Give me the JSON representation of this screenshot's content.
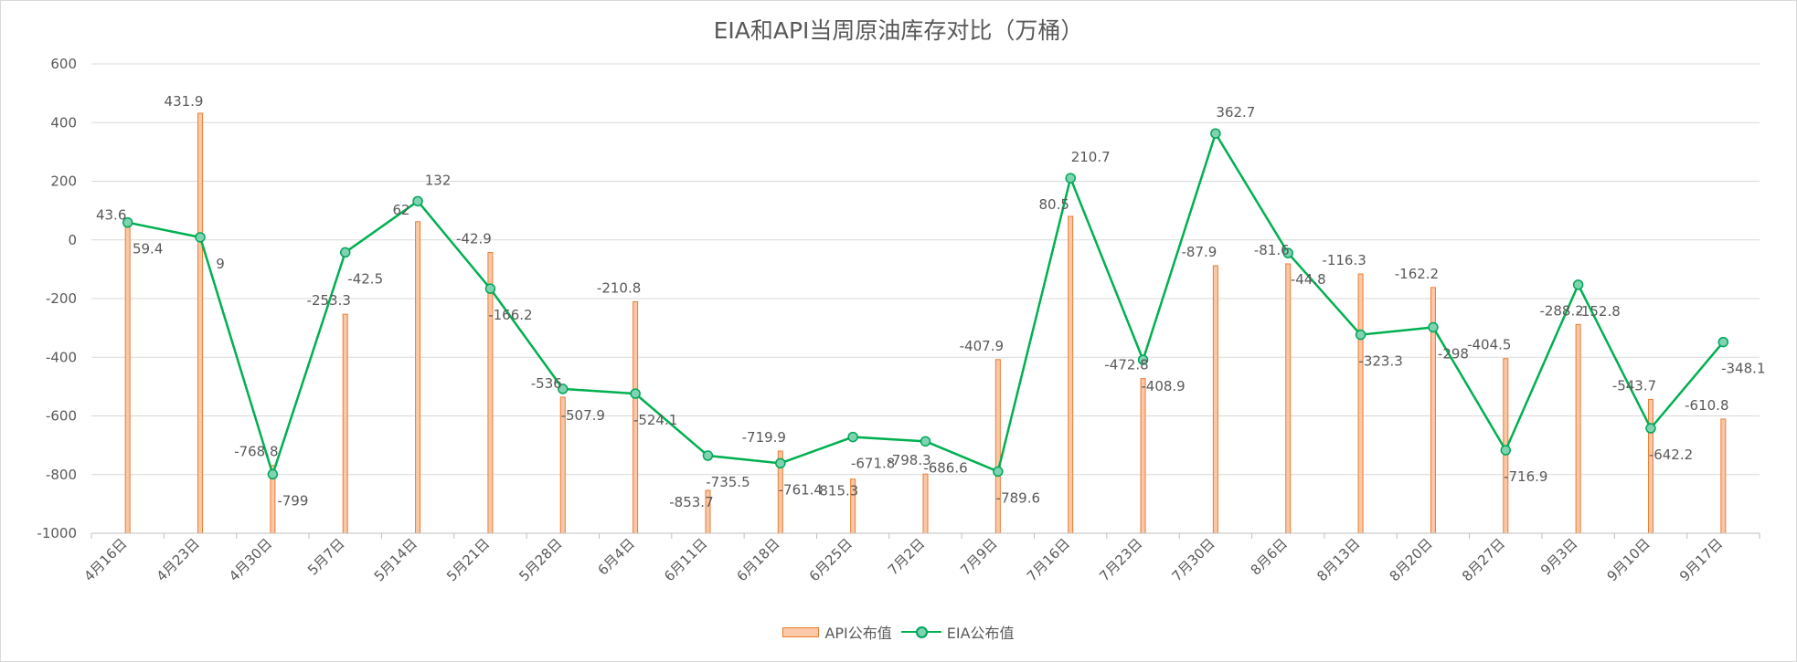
{
  "chart_data": {
    "type": "bar+line",
    "title": "EIA和API当周原油库存对比（万桶）",
    "categories": [
      "4月16日",
      "4月23日",
      "4月30日",
      "5月7日",
      "5月14日",
      "5月21日",
      "5月28日",
      "6月4日",
      "6月11日",
      "6月18日",
      "6月25日",
      "7月2日",
      "7月9日",
      "7月16日",
      "7月23日",
      "7月30日",
      "8月6日",
      "8月13日",
      "8月20日",
      "8月27日",
      "9月3日",
      "9月10日",
      "9月17日"
    ],
    "series": [
      {
        "name": "API公布值",
        "type": "bar",
        "color": "#ed7d31",
        "fill": "#f8c8a8",
        "values": [
          43.6,
          431.9,
          -768.8,
          -253.3,
          62,
          -42.9,
          -536,
          -210.8,
          -853.7,
          -719.9,
          -815.3,
          -798.3,
          -407.9,
          80.5,
          -472.8,
          -87.9,
          -81.6,
          -116.3,
          -162.2,
          -404.5,
          -288.2,
          -543.7,
          -610.8
        ]
      },
      {
        "name": "EIA公布值",
        "type": "line",
        "color": "#00b050",
        "marker_fill": "#7fd3b1",
        "values": [
          59.4,
          9,
          -799,
          -42.5,
          132,
          -166.2,
          -507.9,
          -524.1,
          -735.5,
          -761.4,
          -671.8,
          -686.6,
          -789.6,
          210.7,
          -408.9,
          362.7,
          -44.8,
          -323.3,
          -298,
          -716.9,
          -152.8,
          -642.2,
          -348.1
        ]
      }
    ],
    "ylim": [
      -1000,
      600
    ],
    "yticks": [
      -1000,
      -800,
      -600,
      -400,
      -200,
      0,
      200,
      400,
      600
    ],
    "grid": true,
    "legend": "bottom"
  }
}
